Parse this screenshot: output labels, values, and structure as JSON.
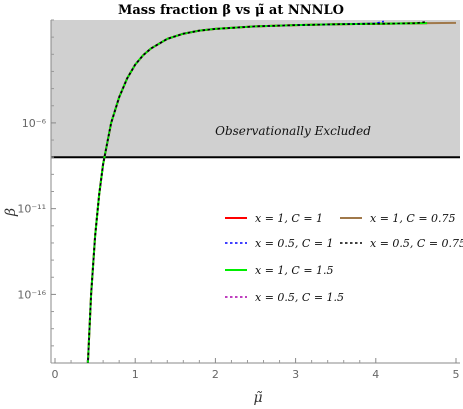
{
  "chart_data": {
    "type": "line",
    "title": "Mass fraction β vs μ̃ at NNNLO",
    "xlabel": "μ̃",
    "ylabel": "β",
    "y_scale": "log10",
    "xlim": [
      -0.05,
      5.05
    ],
    "ylim_log10": [
      -20,
      0
    ],
    "x_ticks": [
      0,
      1,
      2,
      3,
      4,
      5
    ],
    "x_tick_labels": [
      "0",
      "1",
      "2",
      "3",
      "4",
      "5"
    ],
    "y_ticks_log10": [
      -6,
      -11,
      -16
    ],
    "y_tick_labels": [
      "10⁻⁶",
      "10⁻¹¹",
      "10⁻¹⁶"
    ],
    "grid": false,
    "legend_position": "bottom-right",
    "excluded_region": {
      "label": "Observationally Excluded",
      "threshold_log10": -8,
      "fill": "#d0d0d0",
      "line_color": "#000000"
    },
    "series": [
      {
        "name": "x = 1, C = 1",
        "color": "#ff0000",
        "style": "solid",
        "x": [
          0.4,
          0.45,
          0.5,
          0.55,
          0.6,
          0.7,
          0.8,
          0.9,
          1.0,
          1.1,
          1.2,
          1.4,
          1.6,
          1.8,
          2.0,
          2.5,
          3.0,
          3.5,
          4.0,
          4.5,
          4.64
        ],
        "y_log10": [
          -21.0,
          -16.0,
          -12.6,
          -10.2,
          -8.4,
          -6.0,
          -4.5,
          -3.4,
          -2.6,
          -2.05,
          -1.65,
          -1.1,
          -0.8,
          -0.62,
          -0.52,
          -0.37,
          -0.3,
          -0.25,
          -0.22,
          -0.19,
          -0.18
        ]
      },
      {
        "name": "x = 0.5, C = 1",
        "color": "#0000ff",
        "style": "dotted",
        "x": [
          0.4,
          0.45,
          0.5,
          0.55,
          0.6,
          0.7,
          0.8,
          0.9,
          1.0,
          1.1,
          1.2,
          1.4,
          1.6,
          1.8,
          2.0,
          2.5,
          3.0,
          3.5,
          4.0,
          4.1
        ],
        "y_log10": [
          -21.0,
          -16.0,
          -12.6,
          -10.2,
          -8.4,
          -6.0,
          -4.5,
          -3.4,
          -2.6,
          -2.05,
          -1.65,
          -1.1,
          -0.8,
          -0.62,
          -0.52,
          -0.37,
          -0.3,
          -0.25,
          -0.2,
          -0.08
        ]
      },
      {
        "name": "x = 1, C = 1.5",
        "color": "#00ee00",
        "style": "solid",
        "x": [
          0.4,
          0.45,
          0.5,
          0.55,
          0.6,
          0.7,
          0.8,
          0.9,
          1.0,
          1.1,
          1.2,
          1.4,
          1.6,
          1.8,
          2.0,
          2.5,
          3.0,
          3.5,
          4.0,
          4.5,
          4.64
        ],
        "y_log10": [
          -21.0,
          -16.0,
          -12.6,
          -10.2,
          -8.4,
          -6.0,
          -4.5,
          -3.4,
          -2.6,
          -2.05,
          -1.65,
          -1.1,
          -0.8,
          -0.62,
          -0.52,
          -0.37,
          -0.3,
          -0.25,
          -0.22,
          -0.19,
          -0.18
        ]
      },
      {
        "name": "x = 0.5, C = 1.5",
        "color": "#aa00aa",
        "style": "dotted",
        "x": [
          0.4,
          0.45,
          0.5,
          0.55,
          0.6,
          0.7,
          0.8,
          0.9,
          1.0,
          1.1,
          1.2,
          1.4,
          1.6,
          1.8,
          2.0,
          2.5,
          3.0
        ],
        "y_log10": [
          -21.0,
          -16.0,
          -12.6,
          -10.2,
          -8.4,
          -6.0,
          -4.5,
          -3.4,
          -2.6,
          -2.05,
          -1.65,
          -1.1,
          -0.8,
          -0.62,
          -0.52,
          -0.37,
          -0.3
        ]
      },
      {
        "name": "x = 1, C = 0.75",
        "color": "#a0784a",
        "style": "solid",
        "x": [
          0.4,
          0.45,
          0.5,
          0.55,
          0.6,
          0.7,
          0.8,
          0.9,
          1.0,
          1.1,
          1.2,
          1.4,
          1.6,
          1.8,
          2.0,
          2.5,
          3.0,
          3.5,
          4.0,
          4.5,
          5.0
        ],
        "y_log10": [
          -21.0,
          -16.0,
          -12.6,
          -10.2,
          -8.4,
          -6.0,
          -4.5,
          -3.4,
          -2.6,
          -2.05,
          -1.65,
          -1.1,
          -0.8,
          -0.62,
          -0.52,
          -0.37,
          -0.3,
          -0.25,
          -0.22,
          -0.19,
          -0.17
        ]
      },
      {
        "name": "x = 0.5, C = 0.75",
        "color": "#000000",
        "style": "dotted",
        "x": [
          0.4,
          0.45,
          0.5,
          0.55,
          0.6,
          0.7,
          0.8,
          0.9,
          1.0,
          1.1,
          1.2,
          1.4,
          1.6,
          1.8,
          2.0,
          2.5,
          3.0,
          3.5,
          4.0,
          4.5,
          4.64
        ],
        "y_log10": [
          -21.0,
          -16.0,
          -12.6,
          -10.2,
          -8.4,
          -6.0,
          -4.5,
          -3.4,
          -2.6,
          -2.05,
          -1.65,
          -1.1,
          -0.8,
          -0.62,
          -0.52,
          -0.37,
          -0.3,
          -0.25,
          -0.22,
          -0.19,
          -0.1
        ]
      }
    ],
    "legend_order": [
      0,
      4,
      1,
      5,
      2,
      3
    ]
  }
}
